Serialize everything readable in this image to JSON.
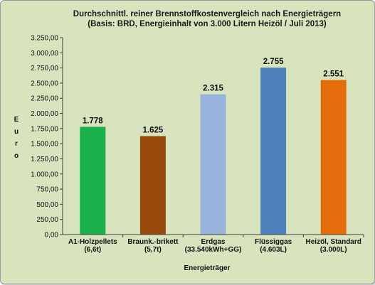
{
  "chart_data": {
    "type": "bar",
    "title": "Durchschnittl. reiner Brennstoffkostenvergleich nach Energieträgern",
    "subtitle": "(Basis: BRD, Energieinhalt von  3.000 Litern Heizöl / Juli 2013)",
    "xlabel": "Energieträger",
    "ylabel": "Euro",
    "categories": [
      [
        "A1-Holzpellets",
        "(6,6t)"
      ],
      [
        "Braunk.-brikett",
        "(5,7t)"
      ],
      [
        "Erdgas",
        "(33.540kWh+GG)"
      ],
      [
        "Flüssiggas",
        "(4.603L)"
      ],
      [
        "Heizöl, Standard",
        "(3.000L)"
      ]
    ],
    "values": [
      1778,
      1625,
      2315,
      2755,
      2551
    ],
    "value_labels": [
      "1.778",
      "1.625",
      "2.315",
      "2.755",
      "2.551"
    ],
    "bar_colors": [
      "#1ab04c",
      "#974a0b",
      "#96b3dc",
      "#4f81bd",
      "#e46c0a"
    ],
    "ylim": [
      0,
      3250
    ],
    "ytick_step": 250,
    "ytick_labels": [
      "0,00",
      "250,00",
      "500,00",
      "750,00",
      "1.000,00",
      "1.250,00",
      "1.500,00",
      "1.750,00",
      "2.000,00",
      "2.250,00",
      "2.500,00",
      "2.750,00",
      "3.000,00",
      "3.250,00"
    ],
    "grid": false,
    "legend": "none",
    "colors": {
      "background": "#d7e4bd",
      "plot_area": "#d7e4bd",
      "axis": "#404040"
    }
  }
}
